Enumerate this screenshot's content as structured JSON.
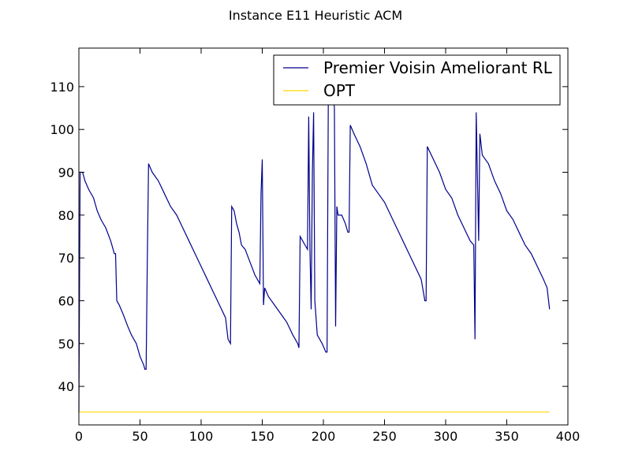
{
  "chart_data": {
    "type": "line",
    "title": "Instance E11 Heuristic ACM",
    "xlabel": "",
    "ylabel": "",
    "xlim": [
      0,
      400
    ],
    "ylim": [
      31,
      119
    ],
    "xticks": [
      0,
      50,
      100,
      150,
      200,
      250,
      300,
      350,
      400
    ],
    "yticks": [
      40,
      50,
      60,
      70,
      80,
      90,
      100,
      110
    ],
    "grid": false,
    "legend_position": "top-right",
    "series": [
      {
        "name": "Premier Voisin Ameliorant RL",
        "color": "#00008b",
        "points": [
          [
            0,
            34
          ],
          [
            1,
            90
          ],
          [
            3,
            90
          ],
          [
            5,
            88
          ],
          [
            8,
            86
          ],
          [
            12,
            84
          ],
          [
            15,
            81
          ],
          [
            18,
            79
          ],
          [
            22,
            77
          ],
          [
            26,
            74
          ],
          [
            29,
            71
          ],
          [
            30,
            71
          ],
          [
            31,
            60
          ],
          [
            33,
            59
          ],
          [
            36,
            57
          ],
          [
            40,
            54
          ],
          [
            43,
            52
          ],
          [
            47,
            50
          ],
          [
            50,
            47
          ],
          [
            53,
            45
          ],
          [
            54,
            44
          ],
          [
            55,
            44
          ],
          [
            56,
            70
          ],
          [
            57,
            92
          ],
          [
            60,
            90
          ],
          [
            65,
            88
          ],
          [
            70,
            85
          ],
          [
            75,
            82
          ],
          [
            80,
            80
          ],
          [
            85,
            77
          ],
          [
            90,
            74
          ],
          [
            95,
            71
          ],
          [
            100,
            68
          ],
          [
            105,
            65
          ],
          [
            110,
            62
          ],
          [
            115,
            59
          ],
          [
            120,
            56
          ],
          [
            122,
            51
          ],
          [
            124,
            50
          ],
          [
            125,
            82
          ],
          [
            127,
            81
          ],
          [
            129,
            78
          ],
          [
            131,
            76
          ],
          [
            133,
            73
          ],
          [
            136,
            72
          ],
          [
            140,
            69
          ],
          [
            144,
            66
          ],
          [
            148,
            64
          ],
          [
            149,
            85
          ],
          [
            150,
            93
          ],
          [
            151,
            59
          ],
          [
            152,
            63
          ],
          [
            155,
            61
          ],
          [
            160,
            59
          ],
          [
            165,
            57
          ],
          [
            170,
            55
          ],
          [
            175,
            52
          ],
          [
            179,
            50
          ],
          [
            180,
            49
          ],
          [
            181,
            75
          ],
          [
            183,
            74
          ],
          [
            185,
            73
          ],
          [
            187,
            72
          ],
          [
            188,
            103
          ],
          [
            189,
            72
          ],
          [
            190,
            58
          ],
          [
            191,
            90
          ],
          [
            192,
            104
          ],
          [
            193,
            60
          ],
          [
            195,
            52
          ],
          [
            199,
            50
          ],
          [
            202,
            48
          ],
          [
            203,
            48
          ],
          [
            204,
            106
          ],
          [
            205,
            108
          ],
          [
            206,
            108
          ],
          [
            207,
            108
          ],
          [
            208,
            108
          ],
          [
            209,
            105
          ],
          [
            210,
            54
          ],
          [
            211,
            82
          ],
          [
            212,
            80
          ],
          [
            215,
            80
          ],
          [
            218,
            78
          ],
          [
            220,
            76
          ],
          [
            221,
            76
          ],
          [
            222,
            101
          ],
          [
            225,
            99
          ],
          [
            230,
            96
          ],
          [
            235,
            92
          ],
          [
            240,
            87
          ],
          [
            245,
            85
          ],
          [
            250,
            83
          ],
          [
            255,
            80
          ],
          [
            260,
            77
          ],
          [
            265,
            74
          ],
          [
            270,
            71
          ],
          [
            275,
            68
          ],
          [
            280,
            65
          ],
          [
            283,
            60
          ],
          [
            284,
            60
          ],
          [
            285,
            96
          ],
          [
            290,
            93
          ],
          [
            295,
            90
          ],
          [
            300,
            86
          ],
          [
            305,
            84
          ],
          [
            310,
            80
          ],
          [
            315,
            77
          ],
          [
            320,
            74
          ],
          [
            323,
            73
          ],
          [
            324,
            51
          ],
          [
            325,
            104
          ],
          [
            327,
            74
          ],
          [
            328,
            99
          ],
          [
            330,
            94
          ],
          [
            335,
            92
          ],
          [
            340,
            88
          ],
          [
            345,
            85
          ],
          [
            350,
            81
          ],
          [
            355,
            79
          ],
          [
            360,
            76
          ],
          [
            365,
            73
          ],
          [
            370,
            71
          ],
          [
            375,
            68
          ],
          [
            380,
            65
          ],
          [
            383,
            63
          ],
          [
            385,
            58
          ]
        ]
      },
      {
        "name": "OPT",
        "color": "#ffd700",
        "points": [
          [
            0,
            34
          ],
          [
            385,
            34
          ]
        ]
      }
    ]
  }
}
